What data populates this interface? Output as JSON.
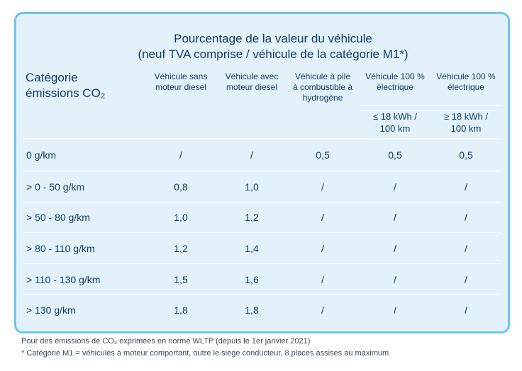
{
  "title_line1": "Pourcentage de la valeur du véhicule",
  "title_line2": "(neuf TVA comprise / véhicule de la catégorie M1*)",
  "category_header_line1": "Catégorie",
  "category_header_line2": "émissions CO₂",
  "columns": [
    {
      "line1": "Véhicule sans",
      "line2": "moteur diesel",
      "line3": ""
    },
    {
      "line1": "Véhicule avec",
      "line2": "moteur diesel",
      "line3": ""
    },
    {
      "line1": "Véhicule à pile",
      "line2": "à combustible à",
      "line3": "hydrogène"
    },
    {
      "line1": "Véhicule 100 %",
      "line2": "électrique",
      "line3": ""
    },
    {
      "line1": "Véhicule 100 %",
      "line2": "électrique",
      "line3": ""
    }
  ],
  "sub_headers": [
    {
      "line1": "≤ 18 kWh /",
      "line2": "100 km"
    },
    {
      "line1": "≥ 18 kWh /",
      "line2": "100 km"
    }
  ],
  "rows": [
    {
      "label": "0 g/km",
      "values": [
        "/",
        "/",
        "0,5",
        "0,5",
        "0,5"
      ]
    },
    {
      "label": "> 0 - 50 g/km",
      "values": [
        "0,8",
        "1,0",
        "/",
        "/",
        "/"
      ]
    },
    {
      "label": "> 50 - 80 g/km",
      "values": [
        "1,0",
        "1,2",
        "/",
        "/",
        "/"
      ]
    },
    {
      "label": "> 80 - 110 g/km",
      "values": [
        "1,2",
        "1,4",
        "/",
        "/",
        "/"
      ]
    },
    {
      "label": "> 110 - 130 g/km",
      "values": [
        "1,5",
        "1,6",
        "/",
        "/",
        "/"
      ]
    },
    {
      "label": "> 130 g/km",
      "values": [
        "1,8",
        "1,8",
        "/",
        "/",
        "/"
      ]
    }
  ],
  "footnote1": "Pour des émissions de CO₂ exprimées en norme WLTP (depuis le 1er janvier 2021)",
  "footnote2": "* Catégorie M1 = véhicules à moteur comportant, outre le siège conducteur, 8 places assises au maximum"
}
